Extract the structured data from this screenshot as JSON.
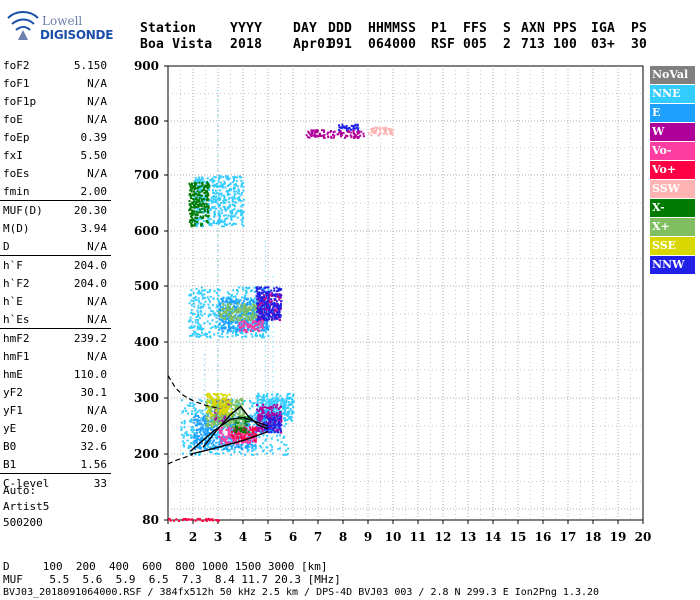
{
  "logo": {
    "line1": "Lowell",
    "line2": "DIGISONDE"
  },
  "header": {
    "line1": [
      "Station",
      "YYYY",
      "DAY",
      "DDD",
      "HHMMSS",
      "P1",
      "FFS",
      "S",
      "AXN",
      "PPS",
      "IGA",
      "PS"
    ],
    "line2": [
      "Boa Vista",
      "2018",
      "Apr01",
      "091",
      "064000",
      "RSF",
      "005",
      "2",
      "713",
      "100",
      "03+",
      "30"
    ]
  },
  "params": [
    {
      "k": "foF2",
      "v": "5.150"
    },
    {
      "k": "foF1",
      "v": "N/A"
    },
    {
      "k": "foF1p",
      "v": "N/A"
    },
    {
      "k": "foE",
      "v": "N/A"
    },
    {
      "k": "foEp",
      "v": "0.39"
    },
    {
      "k": "fxI",
      "v": "5.50"
    },
    {
      "k": "foEs",
      "v": "N/A"
    },
    {
      "k": "fmin",
      "v": "2.00"
    },
    {
      "k": "MUF(D)",
      "v": "20.30"
    },
    {
      "k": "M(D)",
      "v": "3.94"
    },
    {
      "k": "D",
      "v": "N/A"
    },
    {
      "k": "h`F",
      "v": "204.0"
    },
    {
      "k": "h`F2",
      "v": "204.0"
    },
    {
      "k": "h`E",
      "v": "N/A"
    },
    {
      "k": "h`Es",
      "v": "N/A"
    },
    {
      "k": "hmF2",
      "v": "239.2"
    },
    {
      "k": "hmF1",
      "v": "N/A"
    },
    {
      "k": "hmE",
      "v": "110.0"
    },
    {
      "k": "yF2",
      "v": "30.1"
    },
    {
      "k": "yF1",
      "v": "N/A"
    },
    {
      "k": "yE",
      "v": "20.0"
    },
    {
      "k": "B0",
      "v": "32.6"
    },
    {
      "k": "B1",
      "v": "1.56"
    },
    {
      "k": "C-level",
      "v": "33"
    }
  ],
  "auto": {
    "l1": "Auto:",
    "l2": "Artist5",
    "l3": "500200"
  },
  "legend": [
    {
      "label": "NoVal",
      "color": "#7f7f7f"
    },
    {
      "label": "NNE",
      "color": "#33ccff"
    },
    {
      "label": "E",
      "color": "#1ea0ff"
    },
    {
      "label": "W",
      "color": "#b0009a"
    },
    {
      "label": "Vo-",
      "color": "#ff3ca0"
    },
    {
      "label": "Vo+",
      "color": "#ff0045"
    },
    {
      "label": "SSW",
      "color": "#ffb3b3"
    },
    {
      "label": "X-",
      "color": "#007a00"
    },
    {
      "label": "X+",
      "color": "#7fbf5f"
    },
    {
      "label": "SSE",
      "color": "#d8d800"
    },
    {
      "label": "NNW",
      "color": "#2020e6"
    }
  ],
  "footer": {
    "d_row": "D     100  200  400  600  800 1000 1500 3000 [km]",
    "muf_row": "MUF    5.5  5.6  5.9  6.5  7.3  8.4 11.7 20.3 [MHz]",
    "info": "BVJ03_2018091064000.RSF / 384fx512h 50 kHz 2.5 km / DPS-4D BVJ03 003 / 2.8 N 299.3 E Ion2Png 1.3.20"
  },
  "chart_data": {
    "type": "scatter",
    "xlabel": "",
    "ylabel": "",
    "xlim": [
      1,
      20
    ],
    "ylim": [
      80,
      900
    ],
    "x_ticks": [
      "1",
      "2",
      "3",
      "4",
      "5",
      "6",
      "7",
      "8",
      "9",
      "10",
      "11",
      "12",
      "13",
      "14",
      "15",
      "16",
      "17",
      "18",
      "19",
      "20"
    ],
    "y_ticks": [
      "80",
      "200",
      "300",
      "400",
      "500",
      "600",
      "700",
      "800",
      "900"
    ],
    "grid": true,
    "legend_position": "right",
    "series": [
      {
        "name": "NNE",
        "color": "#33ccff",
        "clusters": [
          {
            "x": [
              1.5,
              5.8
            ],
            "y": [
              200,
              300
            ]
          },
          {
            "x": [
              1.8,
              5.0
            ],
            "y": [
              410,
              500
            ]
          },
          {
            "x": [
              2.0,
              4.0
            ],
            "y": [
              610,
              700
            ]
          },
          {
            "x": [
              4.5,
              6.0
            ],
            "y": [
              260,
              310
            ]
          }
        ]
      },
      {
        "name": "E",
        "color": "#1ea0ff",
        "clusters": [
          {
            "x": [
              2.0,
              4.5
            ],
            "y": [
              210,
              270
            ]
          },
          {
            "x": [
              3.0,
              5.0
            ],
            "y": [
              420,
              480
            ]
          },
          {
            "x": [
              4.5,
              5.5
            ],
            "y": [
              240,
              280
            ]
          }
        ]
      },
      {
        "name": "W",
        "color": "#b0009a",
        "clusters": [
          {
            "x": [
              6.5,
              8.8
            ],
            "y": [
              770,
              785
            ]
          },
          {
            "x": [
              4.5,
              5.5
            ],
            "y": [
              240,
              290
            ]
          },
          {
            "x": [
              4.5,
              5.5
            ],
            "y": [
              440,
              490
            ]
          },
          {
            "x": [
              2.8,
              3.4
            ],
            "y": [
              260,
              300
            ]
          }
        ]
      },
      {
        "name": "Vo-",
        "color": "#ff3ca0",
        "clusters": [
          {
            "x": [
              3.0,
              4.5
            ],
            "y": [
              220,
              250
            ]
          },
          {
            "x": [
              3.8,
              4.8
            ],
            "y": [
              420,
              440
            ]
          }
        ]
      },
      {
        "name": "Vo+",
        "color": "#ff0045",
        "clusters": [
          {
            "x": [
              3.5,
              4.5
            ],
            "y": [
              225,
              250
            ]
          },
          {
            "x": [
              1.0,
              3.0
            ],
            "y": [
              80,
              84
            ]
          }
        ]
      },
      {
        "name": "SSW",
        "color": "#ffb3b3",
        "clusters": [
          {
            "x": [
              9.0,
              10.0
            ],
            "y": [
              775,
              790
            ]
          }
        ]
      },
      {
        "name": "X-",
        "color": "#007a00",
        "clusters": [
          {
            "x": [
              1.8,
              2.6
            ],
            "y": [
              610,
              690
            ]
          },
          {
            "x": [
              3.5,
              4.2
            ],
            "y": [
              240,
              270
            ]
          }
        ]
      },
      {
        "name": "X+",
        "color": "#7fbf5f",
        "clusters": [
          {
            "x": [
              2.5,
              4.0
            ],
            "y": [
              250,
              300
            ]
          },
          {
            "x": [
              3.0,
              4.5
            ],
            "y": [
              440,
              470
            ]
          }
        ]
      },
      {
        "name": "SSE",
        "color": "#d8d800",
        "clusters": [
          {
            "x": [
              2.5,
              3.5
            ],
            "y": [
              270,
              310
            ]
          }
        ]
      },
      {
        "name": "NNW",
        "color": "#2020e6",
        "clusters": [
          {
            "x": [
              4.8,
              5.5
            ],
            "y": [
              240,
              270
            ]
          },
          {
            "x": [
              4.5,
              5.5
            ],
            "y": [
              440,
              500
            ]
          },
          {
            "x": [
              7.8,
              8.6
            ],
            "y": [
              785,
              795
            ]
          }
        ]
      }
    ],
    "traces": [
      {
        "type": "dashed",
        "points": [
          [
            1.0,
            340
          ],
          [
            1.3,
            318
          ],
          [
            1.6,
            305
          ],
          [
            2.0,
            295
          ],
          [
            2.5,
            287
          ],
          [
            3.0,
            282
          ]
        ]
      },
      {
        "type": "dashed",
        "points": [
          [
            1.0,
            182
          ],
          [
            1.3,
            188
          ],
          [
            1.6,
            193
          ],
          [
            2.0,
            199
          ]
        ]
      },
      {
        "type": "solid",
        "points": [
          [
            1.9,
            200
          ],
          [
            2.5,
            206
          ],
          [
            3.0,
            212
          ],
          [
            3.5,
            218
          ],
          [
            4.0,
            224
          ],
          [
            4.5,
            232
          ],
          [
            5.0,
            240
          ]
        ]
      },
      {
        "type": "solid",
        "points": [
          [
            2.4,
            212
          ],
          [
            3.0,
            245
          ],
          [
            3.5,
            270
          ],
          [
            3.9,
            285
          ],
          [
            4.2,
            268
          ],
          [
            4.6,
            252
          ],
          [
            5.0,
            245
          ]
        ]
      },
      {
        "type": "solid",
        "points": [
          [
            1.9,
            205
          ],
          [
            2.8,
            240
          ],
          [
            3.5,
            262
          ],
          [
            4.0,
            265
          ],
          [
            4.5,
            258
          ],
          [
            5.0,
            250
          ]
        ]
      }
    ]
  }
}
